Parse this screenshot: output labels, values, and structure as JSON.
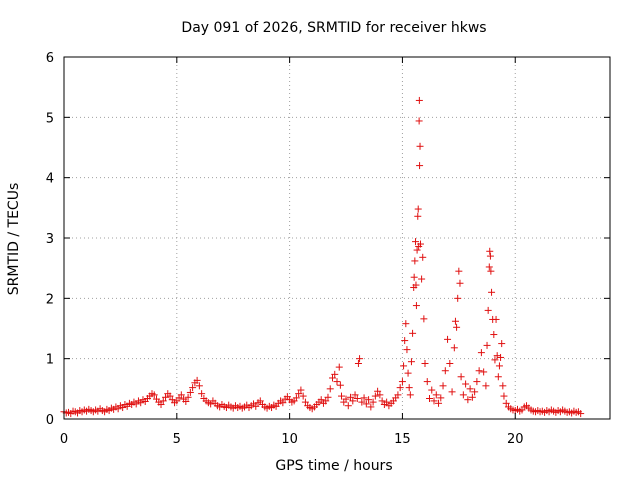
{
  "chart_data": {
    "type": "scatter",
    "title": "Day 091 of 2026, SRMTID for receiver hkws",
    "xlabel": "GPS time / hours",
    "ylabel": "SRMTID / TECUs",
    "xlim": [
      0,
      24.2
    ],
    "ylim": [
      0,
      6
    ],
    "xticks": [
      0,
      5,
      10,
      15,
      20
    ],
    "yticks": [
      0,
      1,
      2,
      3,
      4,
      5,
      6
    ],
    "grid": true,
    "marker": "+",
    "marker_color": "#e01010",
    "series": [
      {
        "name": "hkws",
        "points": [
          [
            0.0,
            0.12
          ],
          [
            0.1,
            0.1
          ],
          [
            0.2,
            0.11
          ],
          [
            0.3,
            0.09
          ],
          [
            0.4,
            0.13
          ],
          [
            0.5,
            0.12
          ],
          [
            0.6,
            0.1
          ],
          [
            0.7,
            0.14
          ],
          [
            0.8,
            0.12
          ],
          [
            0.9,
            0.15
          ],
          [
            1.0,
            0.13
          ],
          [
            1.1,
            0.16
          ],
          [
            1.2,
            0.14
          ],
          [
            1.3,
            0.12
          ],
          [
            1.4,
            0.15
          ],
          [
            1.5,
            0.13
          ],
          [
            1.6,
            0.17
          ],
          [
            1.7,
            0.14
          ],
          [
            1.8,
            0.12
          ],
          [
            1.9,
            0.16
          ],
          [
            2.0,
            0.14
          ],
          [
            2.1,
            0.18
          ],
          [
            2.2,
            0.16
          ],
          [
            2.3,
            0.2
          ],
          [
            2.4,
            0.17
          ],
          [
            2.5,
            0.22
          ],
          [
            2.6,
            0.19
          ],
          [
            2.7,
            0.24
          ],
          [
            2.8,
            0.21
          ],
          [
            2.9,
            0.26
          ],
          [
            3.0,
            0.24
          ],
          [
            3.1,
            0.28
          ],
          [
            3.2,
            0.25
          ],
          [
            3.3,
            0.3
          ],
          [
            3.4,
            0.27
          ],
          [
            3.5,
            0.32
          ],
          [
            3.6,
            0.29
          ],
          [
            3.7,
            0.34
          ],
          [
            3.8,
            0.38
          ],
          [
            3.9,
            0.42
          ],
          [
            4.0,
            0.4
          ],
          [
            4.1,
            0.33
          ],
          [
            4.2,
            0.28
          ],
          [
            4.3,
            0.24
          ],
          [
            4.4,
            0.3
          ],
          [
            4.5,
            0.36
          ],
          [
            4.6,
            0.42
          ],
          [
            4.7,
            0.38
          ],
          [
            4.8,
            0.32
          ],
          [
            4.9,
            0.27
          ],
          [
            5.0,
            0.3
          ],
          [
            5.1,
            0.35
          ],
          [
            5.2,
            0.4
          ],
          [
            5.3,
            0.33
          ],
          [
            5.4,
            0.29
          ],
          [
            5.5,
            0.36
          ],
          [
            5.6,
            0.44
          ],
          [
            5.7,
            0.52
          ],
          [
            5.8,
            0.6
          ],
          [
            5.9,
            0.64
          ],
          [
            6.0,
            0.55
          ],
          [
            6.1,
            0.42
          ],
          [
            6.2,
            0.34
          ],
          [
            6.3,
            0.3
          ],
          [
            6.4,
            0.27
          ],
          [
            6.5,
            0.25
          ],
          [
            6.6,
            0.3
          ],
          [
            6.7,
            0.26
          ],
          [
            6.8,
            0.22
          ],
          [
            6.9,
            0.2
          ],
          [
            7.0,
            0.24
          ],
          [
            7.1,
            0.21
          ],
          [
            7.2,
            0.19
          ],
          [
            7.3,
            0.23
          ],
          [
            7.4,
            0.2
          ],
          [
            7.5,
            0.18
          ],
          [
            7.6,
            0.22
          ],
          [
            7.7,
            0.19
          ],
          [
            7.8,
            0.21
          ],
          [
            7.9,
            0.18
          ],
          [
            8.0,
            0.2
          ],
          [
            8.1,
            0.23
          ],
          [
            8.2,
            0.19
          ],
          [
            8.3,
            0.22
          ],
          [
            8.4,
            0.25
          ],
          [
            8.5,
            0.21
          ],
          [
            8.6,
            0.27
          ],
          [
            8.7,
            0.3
          ],
          [
            8.8,
            0.24
          ],
          [
            8.9,
            0.2
          ],
          [
            9.0,
            0.18
          ],
          [
            9.1,
            0.21
          ],
          [
            9.2,
            0.19
          ],
          [
            9.3,
            0.23
          ],
          [
            9.4,
            0.21
          ],
          [
            9.5,
            0.26
          ],
          [
            9.6,
            0.3
          ],
          [
            9.7,
            0.27
          ],
          [
            9.8,
            0.33
          ],
          [
            9.9,
            0.37
          ],
          [
            10.0,
            0.32
          ],
          [
            10.1,
            0.28
          ],
          [
            10.2,
            0.3
          ],
          [
            10.3,
            0.35
          ],
          [
            10.4,
            0.42
          ],
          [
            10.5,
            0.48
          ],
          [
            10.6,
            0.38
          ],
          [
            10.7,
            0.28
          ],
          [
            10.8,
            0.22
          ],
          [
            10.9,
            0.19
          ],
          [
            11.0,
            0.17
          ],
          [
            11.1,
            0.2
          ],
          [
            11.2,
            0.24
          ],
          [
            11.3,
            0.28
          ],
          [
            11.4,
            0.32
          ],
          [
            11.5,
            0.26
          ],
          [
            11.6,
            0.3
          ],
          [
            11.7,
            0.36
          ],
          [
            11.8,
            0.5
          ],
          [
            11.9,
            0.68
          ],
          [
            12.0,
            0.74
          ],
          [
            12.1,
            0.62
          ],
          [
            12.2,
            0.86
          ],
          [
            12.25,
            0.56
          ],
          [
            12.3,
            0.38
          ],
          [
            12.4,
            0.28
          ],
          [
            12.5,
            0.33
          ],
          [
            12.6,
            0.22
          ],
          [
            12.7,
            0.36
          ],
          [
            12.8,
            0.3
          ],
          [
            12.9,
            0.4
          ],
          [
            13.0,
            0.34
          ],
          [
            13.05,
            0.92
          ],
          [
            13.1,
            1.0
          ],
          [
            13.2,
            0.28
          ],
          [
            13.3,
            0.35
          ],
          [
            13.4,
            0.25
          ],
          [
            13.5,
            0.32
          ],
          [
            13.6,
            0.2
          ],
          [
            13.7,
            0.28
          ],
          [
            13.8,
            0.38
          ],
          [
            13.9,
            0.46
          ],
          [
            14.0,
            0.4
          ],
          [
            14.1,
            0.3
          ],
          [
            14.2,
            0.24
          ],
          [
            14.3,
            0.28
          ],
          [
            14.4,
            0.22
          ],
          [
            14.5,
            0.26
          ],
          [
            14.6,
            0.3
          ],
          [
            14.7,
            0.35
          ],
          [
            14.8,
            0.4
          ],
          [
            14.9,
            0.52
          ],
          [
            15.0,
            0.62
          ],
          [
            15.05,
            0.88
          ],
          [
            15.1,
            1.3
          ],
          [
            15.15,
            1.58
          ],
          [
            15.2,
            1.15
          ],
          [
            15.25,
            0.76
          ],
          [
            15.3,
            0.52
          ],
          [
            15.35,
            0.4
          ],
          [
            15.4,
            0.95
          ],
          [
            15.45,
            1.42
          ],
          [
            15.5,
            2.18
          ],
          [
            15.52,
            2.35
          ],
          [
            15.55,
            2.62
          ],
          [
            15.58,
            2.94
          ],
          [
            15.6,
            2.22
          ],
          [
            15.62,
            1.88
          ],
          [
            15.65,
            2.8
          ],
          [
            15.68,
            3.36
          ],
          [
            15.7,
            3.48
          ],
          [
            15.72,
            2.86
          ],
          [
            15.74,
            4.94
          ],
          [
            15.75,
            5.28
          ],
          [
            15.76,
            4.2
          ],
          [
            15.78,
            4.52
          ],
          [
            15.8,
            2.9
          ],
          [
            15.85,
            2.32
          ],
          [
            15.9,
            2.68
          ],
          [
            15.95,
            1.66
          ],
          [
            16.0,
            0.92
          ],
          [
            16.1,
            0.62
          ],
          [
            16.2,
            0.34
          ],
          [
            16.3,
            0.48
          ],
          [
            16.4,
            0.3
          ],
          [
            16.5,
            0.4
          ],
          [
            16.6,
            0.26
          ],
          [
            16.7,
            0.35
          ],
          [
            16.8,
            0.55
          ],
          [
            16.9,
            0.8
          ],
          [
            17.0,
            1.32
          ],
          [
            17.1,
            0.92
          ],
          [
            17.2,
            0.45
          ],
          [
            17.3,
            1.18
          ],
          [
            17.35,
            1.62
          ],
          [
            17.4,
            1.52
          ],
          [
            17.45,
            2.0
          ],
          [
            17.5,
            2.45
          ],
          [
            17.55,
            2.25
          ],
          [
            17.6,
            0.7
          ],
          [
            17.7,
            0.4
          ],
          [
            17.8,
            0.58
          ],
          [
            17.9,
            0.32
          ],
          [
            18.0,
            0.5
          ],
          [
            18.1,
            0.36
          ],
          [
            18.2,
            0.45
          ],
          [
            18.3,
            0.62
          ],
          [
            18.4,
            0.8
          ],
          [
            18.5,
            1.1
          ],
          [
            18.6,
            0.78
          ],
          [
            18.7,
            0.55
          ],
          [
            18.75,
            1.22
          ],
          [
            18.8,
            1.8
          ],
          [
            18.85,
            2.52
          ],
          [
            18.87,
            2.78
          ],
          [
            18.9,
            2.7
          ],
          [
            18.92,
            2.45
          ],
          [
            18.95,
            2.1
          ],
          [
            19.0,
            1.65
          ],
          [
            19.05,
            1.4
          ],
          [
            19.1,
            0.98
          ],
          [
            19.15,
            1.65
          ],
          [
            19.2,
            1.05
          ],
          [
            19.25,
            0.7
          ],
          [
            19.3,
            0.88
          ],
          [
            19.35,
            1.02
          ],
          [
            19.4,
            1.25
          ],
          [
            19.45,
            0.55
          ],
          [
            19.5,
            0.38
          ],
          [
            19.6,
            0.26
          ],
          [
            19.7,
            0.2
          ],
          [
            19.8,
            0.17
          ],
          [
            19.9,
            0.15
          ],
          [
            20.0,
            0.14
          ],
          [
            20.1,
            0.16
          ],
          [
            20.2,
            0.13
          ],
          [
            20.3,
            0.15
          ],
          [
            20.4,
            0.2
          ],
          [
            20.5,
            0.22
          ],
          [
            20.6,
            0.18
          ],
          [
            20.7,
            0.15
          ],
          [
            20.8,
            0.13
          ],
          [
            20.9,
            0.12
          ],
          [
            21.0,
            0.14
          ],
          [
            21.1,
            0.12
          ],
          [
            21.2,
            0.13
          ],
          [
            21.3,
            0.11
          ],
          [
            21.4,
            0.14
          ],
          [
            21.5,
            0.12
          ],
          [
            21.6,
            0.15
          ],
          [
            21.7,
            0.13
          ],
          [
            21.8,
            0.11
          ],
          [
            21.9,
            0.14
          ],
          [
            22.0,
            0.12
          ],
          [
            22.1,
            0.15
          ],
          [
            22.2,
            0.13
          ],
          [
            22.3,
            0.11
          ],
          [
            22.4,
            0.12
          ],
          [
            22.5,
            0.1
          ],
          [
            22.6,
            0.13
          ],
          [
            22.7,
            0.11
          ],
          [
            22.8,
            0.12
          ],
          [
            22.9,
            0.09
          ]
        ]
      }
    ]
  }
}
